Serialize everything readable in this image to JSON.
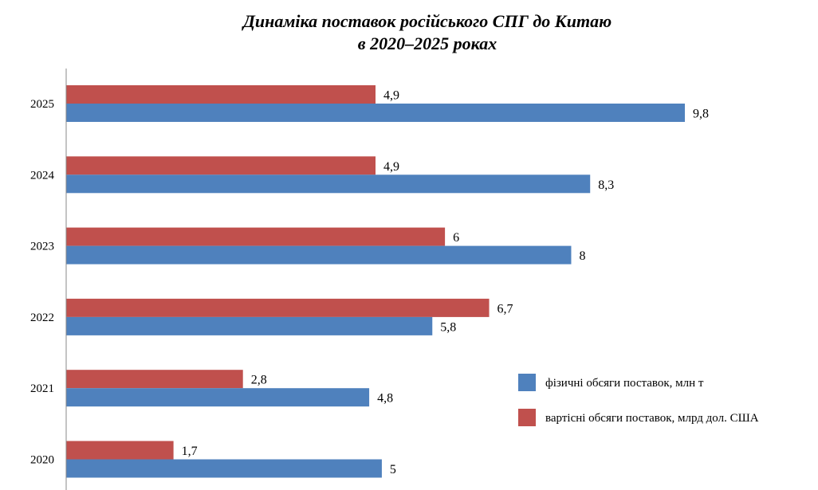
{
  "chart_data": {
    "type": "bar",
    "orientation": "horizontal",
    "title": [
      "Динаміка поставок російського СПГ до Китаю",
      "в 2020–2025 роках"
    ],
    "categories": [
      "2025",
      "2024",
      "2023",
      "2022",
      "2021",
      "2020"
    ],
    "series": [
      {
        "name": "вартісні обсяги поставок, млрд дол. США",
        "color": "#c0504d",
        "values": [
          4.9,
          4.9,
          6,
          6.7,
          2.8,
          1.7
        ],
        "labels": [
          "4,9",
          "4,9",
          "6",
          "6,7",
          "2,8",
          "1,7"
        ]
      },
      {
        "name": "фізичні обсяги поставок, млн т",
        "color": "#4f81bd",
        "values": [
          9.8,
          8.3,
          8,
          5.8,
          4.8,
          5
        ],
        "labels": [
          "9,8",
          "8,3",
          "8",
          "5,8",
          "4,8",
          "5"
        ]
      }
    ],
    "xlim": [
      0,
      12
    ],
    "grid": false,
    "legend": {
      "placement": "right",
      "order": [
        "фізичні обсяги поставок, млн т",
        "вартісні обсяги поставок, млрд дол. США"
      ]
    }
  }
}
